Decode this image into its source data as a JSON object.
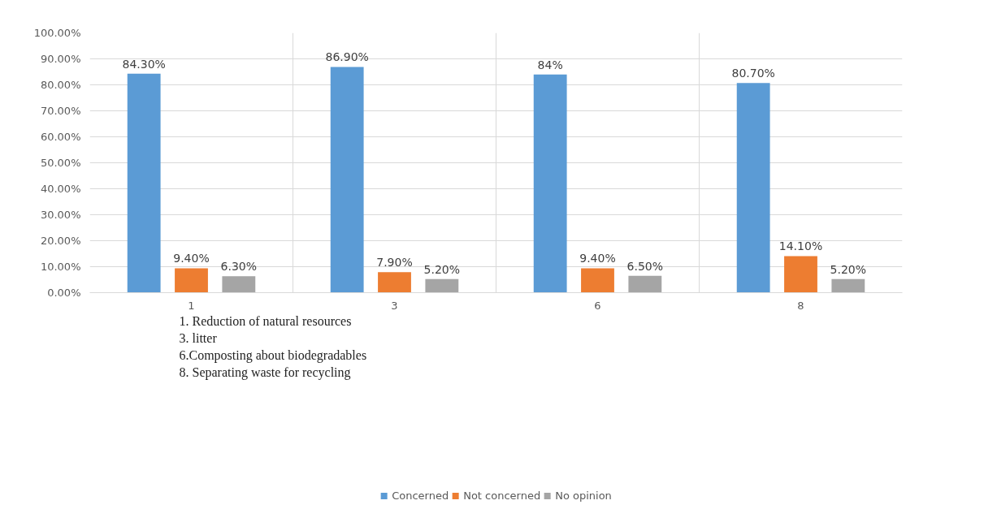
{
  "chart_data": {
    "type": "bar",
    "categories": [
      "1",
      "3",
      "6",
      "8"
    ],
    "series": [
      {
        "name": "Concerned",
        "color": "#5b9bd5",
        "values": [
          84.3,
          86.9,
          84,
          80.7
        ],
        "value_labels": [
          "84.30%",
          "86.90%",
          "84%",
          "80.70%"
        ]
      },
      {
        "name": "Not concerned",
        "color": "#ed7d31",
        "values": [
          9.4,
          7.9,
          9.4,
          14.1
        ],
        "value_labels": [
          "9.40%",
          "7.90%",
          "9.40%",
          "14.10%"
        ]
      },
      {
        "name": "No opinion",
        "color": "#a5a5a5",
        "values": [
          6.3,
          5.2,
          6.5,
          5.2
        ],
        "value_labels": [
          "6.30%",
          "5.20%",
          "6.50%",
          "5.20%"
        ]
      }
    ],
    "ylim": [
      0,
      100
    ],
    "yticks": [
      {
        "value": 0,
        "label": "0.00%"
      },
      {
        "value": 10,
        "label": "10.00%"
      },
      {
        "value": 20,
        "label": "20.00%"
      },
      {
        "value": 30,
        "label": "30.00%"
      },
      {
        "value": 40,
        "label": "40.00%"
      },
      {
        "value": 50,
        "label": "50.00%"
      },
      {
        "value": 60,
        "label": "60.00%"
      },
      {
        "value": 70,
        "label": "70.00%"
      },
      {
        "value": 80,
        "label": "80.00%"
      },
      {
        "value": 90,
        "label": "90.00%"
      },
      {
        "value": 100,
        "label": "100.00%"
      }
    ],
    "grid": true,
    "legend": "bottom",
    "annotations": [
      "1. Reduction of natural resources",
      "3. litter",
      "6.Composting about biodegradables",
      "8. Separating waste for recycling"
    ]
  }
}
